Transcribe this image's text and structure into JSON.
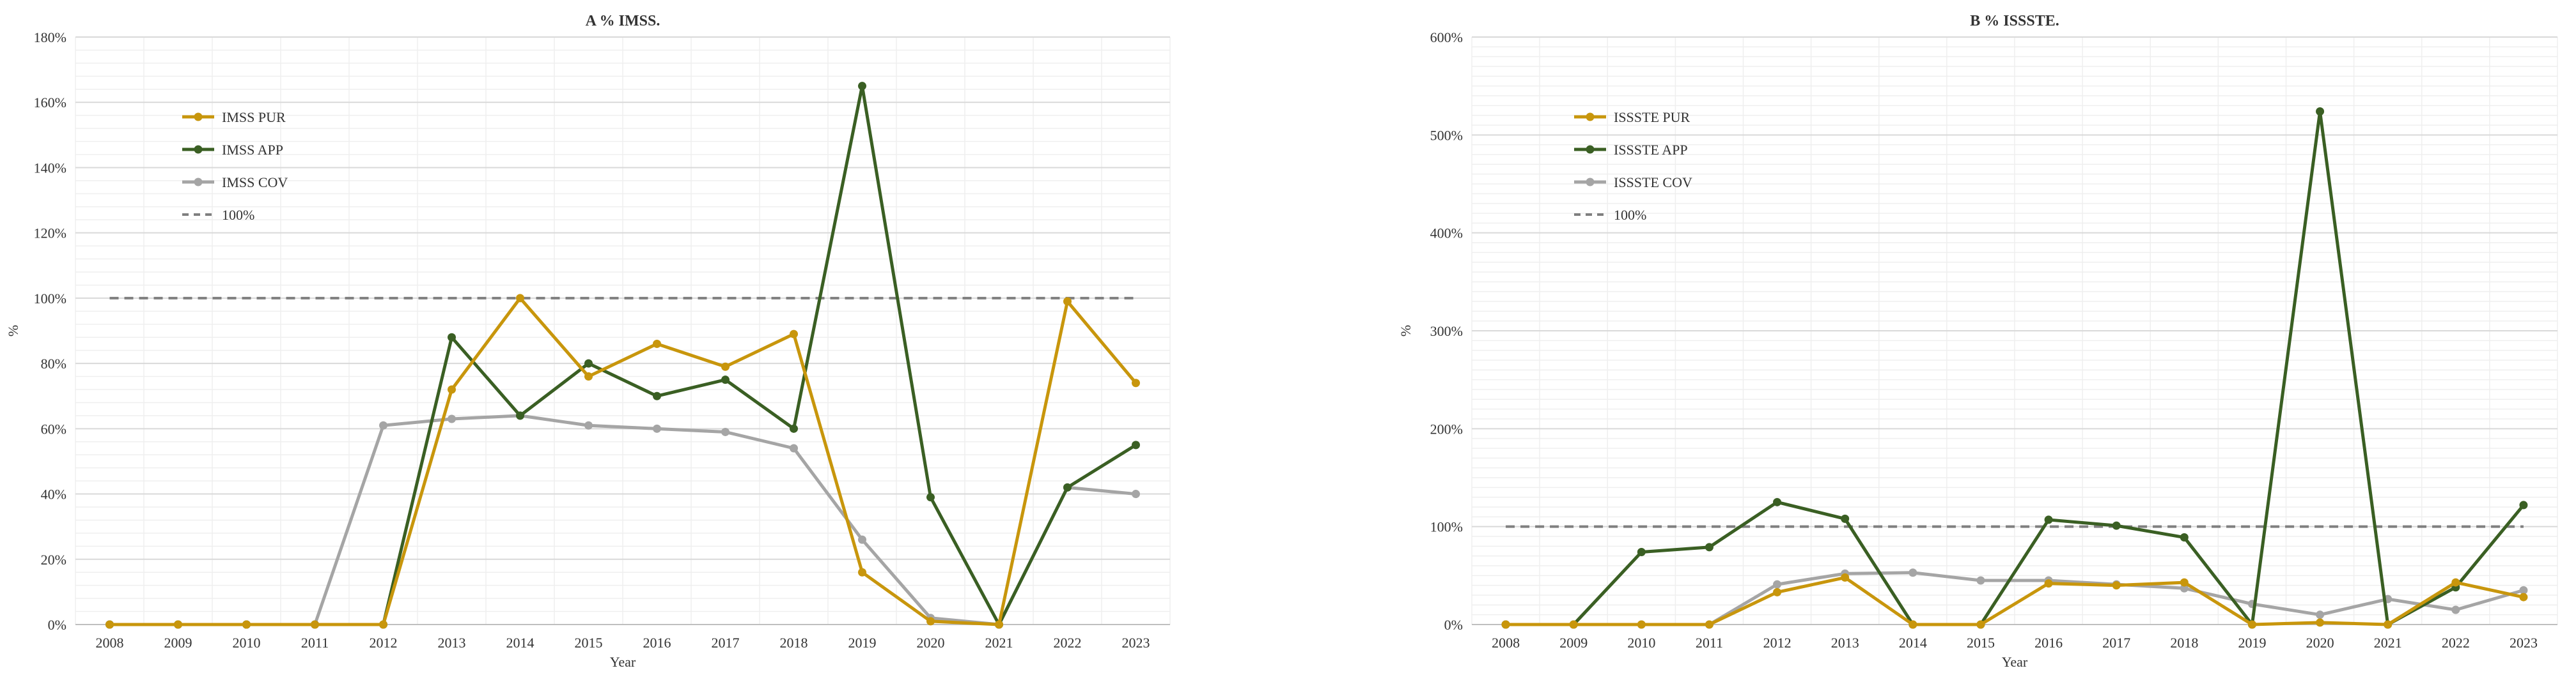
{
  "x_axis_title": "Year",
  "y_axis_title": "%",
  "chart_data": [
    {
      "type": "line",
      "title": "A % IMSS.",
      "xlabel": "Year",
      "ylabel": "%",
      "x": [
        "2008",
        "2009",
        "2010",
        "2011",
        "2012",
        "2013",
        "2014",
        "2015",
        "2016",
        "2017",
        "2018",
        "2019",
        "2020",
        "2021",
        "2022",
        "2023"
      ],
      "ylim": [
        0,
        180
      ],
      "yticks": [
        0,
        20,
        40,
        60,
        80,
        100,
        120,
        140,
        160,
        180
      ],
      "ytick_labels": [
        "0%",
        "20%",
        "40%",
        "60%",
        "80%",
        "100%",
        "120%",
        "140%",
        "160%",
        "180%"
      ],
      "legend_position": "top-left",
      "grid": true,
      "series": [
        {
          "name": "IMSS PUR",
          "color": "#C8960C",
          "values": [
            0,
            0,
            0,
            0,
            0,
            72,
            100,
            76,
            86,
            79,
            89,
            16,
            1,
            0,
            99,
            74
          ]
        },
        {
          "name": "IMSS APP",
          "color": "#3A5F23",
          "values": [
            0,
            0,
            0,
            0,
            0,
            88,
            64,
            80,
            70,
            75,
            60,
            165,
            39,
            0,
            42,
            55
          ]
        },
        {
          "name": "IMSS COV",
          "color": "#A5A5A5",
          "values": [
            0,
            0,
            0,
            0,
            61,
            63,
            64,
            61,
            60,
            59,
            54,
            26,
            2,
            0,
            42,
            40
          ]
        }
      ],
      "reference": {
        "name": "100%",
        "value": 100,
        "color": "#7F7F7F"
      }
    },
    {
      "type": "line",
      "title": "B % ISSSTE.",
      "xlabel": "Year",
      "ylabel": "%",
      "x": [
        "2008",
        "2009",
        "2010",
        "2011",
        "2012",
        "2013",
        "2014",
        "2015",
        "2016",
        "2017",
        "2018",
        "2019",
        "2020",
        "2021",
        "2022",
        "2023"
      ],
      "ylim": [
        0,
        600
      ],
      "yticks": [
        0,
        100,
        200,
        300,
        400,
        500,
        600
      ],
      "ytick_labels": [
        "0%",
        "100%",
        "200%",
        "300%",
        "400%",
        "500%",
        "600%"
      ],
      "legend_position": "top-left",
      "grid": true,
      "series": [
        {
          "name": "ISSSTE PUR",
          "color": "#C8960C",
          "values": [
            0,
            0,
            0,
            0,
            33,
            48,
            0,
            0,
            42,
            40,
            43,
            0,
            2,
            0,
            43,
            28
          ]
        },
        {
          "name": "ISSSTE APP",
          "color": "#3A5F23",
          "values": [
            0,
            0,
            74,
            79,
            125,
            108,
            0,
            0,
            107,
            101,
            89,
            0,
            524,
            0,
            38,
            122
          ]
        },
        {
          "name": "ISSSTE COV",
          "color": "#A5A5A5",
          "values": [
            0,
            0,
            0,
            0,
            41,
            52,
            53,
            45,
            45,
            41,
            37,
            21,
            10,
            26,
            15,
            35
          ]
        }
      ],
      "reference": {
        "name": "100%",
        "value": 100,
        "color": "#7F7F7F"
      }
    }
  ]
}
